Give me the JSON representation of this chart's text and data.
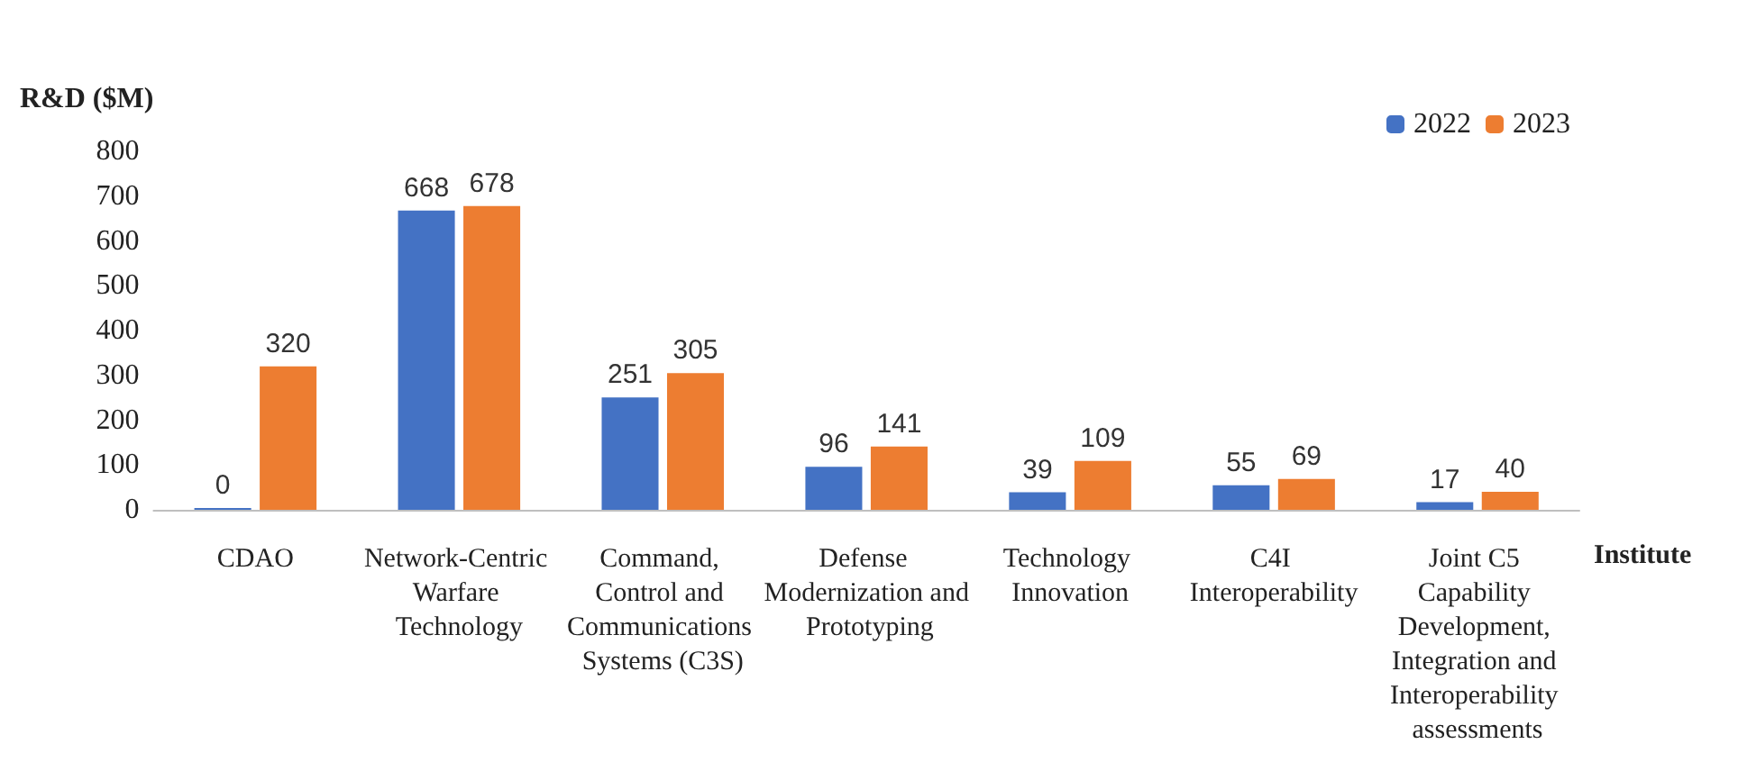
{
  "chart_data": {
    "type": "bar",
    "ylabel": "R&D ($M)",
    "xlabel": "Institute",
    "categories": [
      "CDAO",
      "Network-Centric Warfare Technology",
      "Command, Control and Communications Systems (C3S)",
      "Defense Modernization and Prototyping",
      "Technology Innovation",
      "C4I Interoperability",
      "Joint C5 Capability Development, Integration and Interoperability assessments"
    ],
    "series": [
      {
        "name": "2022",
        "color": "#4472c4",
        "values": [
          0,
          668,
          251,
          96,
          39,
          55,
          17
        ]
      },
      {
        "name": "2023",
        "color": "#ed7d31",
        "values": [
          320,
          678,
          305,
          141,
          109,
          69,
          40
        ]
      }
    ],
    "ylim": [
      0,
      800
    ],
    "yticks": [
      0,
      100,
      200,
      300,
      400,
      500,
      600,
      700,
      800
    ],
    "grid": false,
    "legend": "top right",
    "data_labels": true
  }
}
